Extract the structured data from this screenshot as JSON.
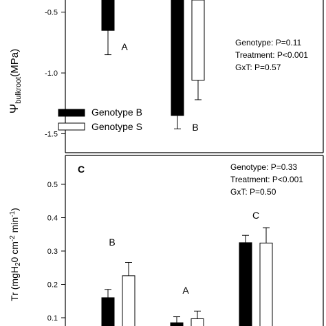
{
  "chart_data": [
    {
      "type": "bar",
      "panel_label": "",
      "ylabel_symbol": "Ψ",
      "ylabel_subscript": "bulkroot",
      "ylabel_unit": "(MPa)",
      "ylim": [
        -1.65,
        -0.4
      ],
      "yticks": [
        "-0.5",
        "-1.0",
        "-1.5"
      ],
      "ytick_values": [
        -0.5,
        -1.0,
        -1.5
      ],
      "groups": [
        {
          "genotype_b": -0.65,
          "genotype_b_err": 0.2,
          "letter": "A"
        },
        {
          "genotype_b": -1.35,
          "genotype_b_err": 0.11,
          "genotype_s": -1.06,
          "genotype_s_err": 0.16,
          "letter": "B"
        }
      ],
      "legend": [
        "Genotype B",
        "Genotype S"
      ],
      "stats": [
        "Genotype: P=0.11",
        "Treatment: P<0.001",
        "GxT: P=0.57"
      ]
    },
    {
      "type": "bar",
      "panel_label": "C",
      "ylabel_main": "Tr (mgH",
      "ylabel_sub": "2",
      "ylabel_rest": "0 cm",
      "ylabel_sup1": "-2",
      "ylabel_mid": " min",
      "ylabel_sup2": "-1",
      "ylabel_end": ")",
      "ylim": [
        0.05,
        0.56
      ],
      "yticks": [
        "0.1",
        "0.2",
        "0.3",
        "0.4",
        "0.5"
      ],
      "ytick_values": [
        0.1,
        0.2,
        0.3,
        0.4,
        0.5
      ],
      "groups": [
        {
          "genotype_b": 0.16,
          "genotype_b_err": 0.025,
          "genotype_s": 0.226,
          "genotype_s_err": 0.04,
          "letter": "B"
        },
        {
          "genotype_b": 0.085,
          "genotype_b_err": 0.018,
          "genotype_s": 0.097,
          "genotype_s_err": 0.023,
          "letter": "A"
        },
        {
          "genotype_b": 0.325,
          "genotype_b_err": 0.022,
          "genotype_s": 0.324,
          "genotype_s_err": 0.046,
          "letter": "C"
        }
      ],
      "stats": [
        "Genotype: P=0.33",
        "Treatment: P<0.001",
        "GxT: P=0.50"
      ]
    }
  ],
  "colors": {
    "genotype_b": "#000000",
    "genotype_s": "#ffffff",
    "axis": "#000000"
  }
}
